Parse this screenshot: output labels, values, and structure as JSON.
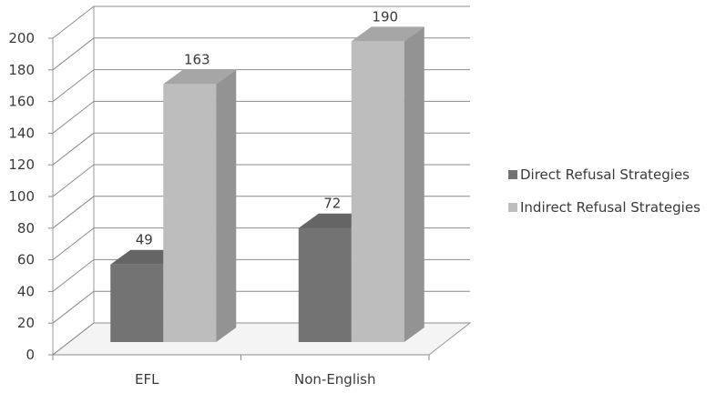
{
  "chart_data": {
    "type": "bar",
    "categories": [
      "EFL",
      "Non-English"
    ],
    "series": [
      {
        "name": "Direct Refusal Strategies",
        "values": [
          49,
          72
        ],
        "color": "#737373"
      },
      {
        "name": "Indirect Refusal Strategies",
        "values": [
          163,
          190
        ],
        "color": "#bdbdbd"
      }
    ],
    "ylim": [
      0,
      200
    ],
    "yticks": [
      0,
      20,
      40,
      60,
      80,
      100,
      120,
      140,
      160,
      180,
      200
    ],
    "data_labels": true,
    "grid": true,
    "three_d": true,
    "legend_position": "right"
  }
}
